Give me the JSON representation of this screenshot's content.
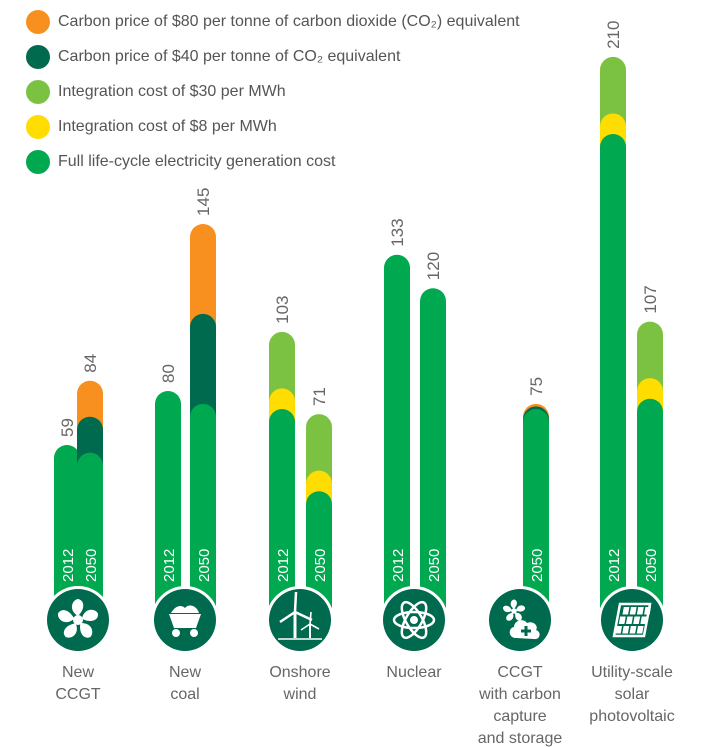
{
  "colors": {
    "carbon80": "#f7901e",
    "carbon40": "#006a4e",
    "integ30": "#7cc242",
    "integ8": "#ffdd00",
    "base": "#00a84f",
    "icon_bg": "#006a4e"
  },
  "legend": [
    {
      "key": "carbon80",
      "label": "Carbon price of $80 per tonne of carbon dioxide (CO₂) equivalent"
    },
    {
      "key": "carbon40",
      "label": "Carbon price of $40 per tonne of CO₂ equivalent"
    },
    {
      "key": "integ30",
      "label": "Integration cost of $30 per MWh"
    },
    {
      "key": "integ8",
      "label": "Integration cost of $8 per MWh"
    },
    {
      "key": "base",
      "label": "Full life-cycle electricity generation cost"
    }
  ],
  "chart_data": {
    "type": "bar",
    "stacked": true,
    "ylim": [
      0,
      215
    ],
    "grid": false,
    "legend_placement": "top-left",
    "categories": [
      {
        "label": [
          "New",
          "CCGT"
        ],
        "icon": "turbine-fan-icon",
        "bars": [
          {
            "year": "2012",
            "total": 59,
            "segments": {
              "base": 59
            }
          },
          {
            "year": "2050",
            "total": 84,
            "segments": {
              "base": 56,
              "carbon40": 70,
              "carbon80": 84
            }
          }
        ]
      },
      {
        "label": [
          "New",
          "coal"
        ],
        "icon": "coal-cart-icon",
        "bars": [
          {
            "year": "2012",
            "total": 80,
            "segments": {
              "base": 80
            }
          },
          {
            "year": "2050",
            "total": 145,
            "segments": {
              "base": 75,
              "carbon40": 110,
              "carbon80": 145
            }
          }
        ]
      },
      {
        "label": [
          "Onshore",
          "wind"
        ],
        "icon": "wind-turbine-icon",
        "bars": [
          {
            "year": "2012",
            "total": 103,
            "segments": {
              "base": 73,
              "integ8": 81,
              "integ30": 103
            }
          },
          {
            "year": "2050",
            "total": 71,
            "segments": {
              "base": 41,
              "integ8": 49,
              "integ30": 71
            }
          }
        ]
      },
      {
        "label": [
          "Nuclear"
        ],
        "icon": "atom-icon",
        "bars": [
          {
            "year": "2012",
            "total": 133,
            "segments": {
              "base": 133
            }
          },
          {
            "year": "2050",
            "total": 120,
            "segments": {
              "base": 120
            }
          }
        ]
      },
      {
        "label": [
          "CCGT",
          "with carbon",
          "capture",
          "and storage"
        ],
        "icon": "ccs-icon",
        "bars": [
          {
            "year": "2050",
            "total": 75,
            "segments": {
              "base": 73,
              "carbon40": 74,
              "carbon80": 75
            }
          }
        ]
      },
      {
        "label": [
          "Utility-scale",
          "solar",
          "photovoltaic"
        ],
        "icon": "solar-panel-icon",
        "bars": [
          {
            "year": "2012",
            "total": 210,
            "segments": {
              "base": 180,
              "integ8": 188,
              "integ30": 210
            }
          },
          {
            "year": "2050",
            "total": 107,
            "segments": {
              "base": 77,
              "integ8": 85,
              "integ30": 107
            }
          }
        ]
      }
    ]
  }
}
